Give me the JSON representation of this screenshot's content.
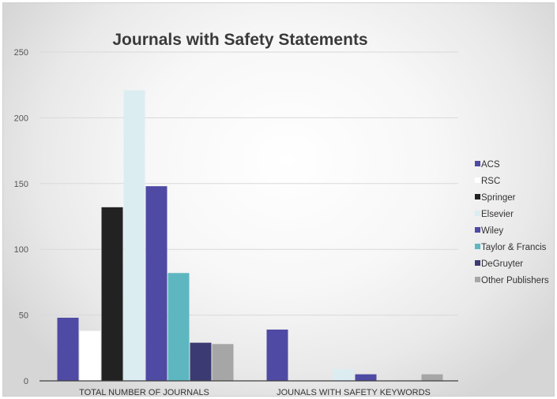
{
  "chart_data": {
    "type": "bar",
    "title": "Journals with Safety Statements",
    "categories": [
      "TOTAL NUMBER OF JOURNALS",
      "JOUNALS WITH SAFETY KEYWORDS"
    ],
    "ylim": [
      0,
      250
    ],
    "yticks": [
      0,
      50,
      100,
      150,
      200,
      250
    ],
    "grid": true,
    "legend_position": "right",
    "series": [
      {
        "name": "ACS",
        "color": "#4f4aa3",
        "values": [
          48,
          39
        ]
      },
      {
        "name": "RSC",
        "color": "#ffffff",
        "values": [
          38,
          0
        ]
      },
      {
        "name": "Springer",
        "color": "#222222",
        "values": [
          132,
          0
        ]
      },
      {
        "name": "Elsevier",
        "color": "#dcedf2",
        "values": [
          221,
          9
        ]
      },
      {
        "name": "Wiley",
        "color": "#4f4aa3",
        "values": [
          148,
          5
        ]
      },
      {
        "name": "Taylor & Francis",
        "color": "#5eb7c0",
        "values": [
          82,
          0
        ]
      },
      {
        "name": "DeGruyter",
        "color": "#3b3a72",
        "values": [
          29,
          0
        ]
      },
      {
        "name": "Other Publishers",
        "color": "#a6a6a6",
        "values": [
          28,
          5
        ]
      }
    ]
  }
}
